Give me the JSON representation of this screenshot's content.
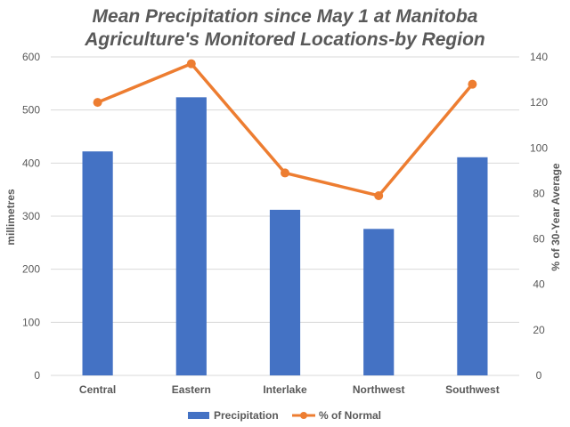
{
  "chart_data": {
    "type": "bar",
    "title_line1": "Mean Precipitation since May 1 at Manitoba",
    "title_line2": "Agriculture's Monitored Locations-by Region",
    "categories": [
      "Central",
      "Eastern",
      "Interlake",
      "Northwest",
      "Southwest"
    ],
    "series": [
      {
        "name": "Precipitation",
        "type": "bar",
        "axis": "left",
        "color": "#4472C4",
        "values": [
          422,
          524,
          312,
          276,
          411
        ]
      },
      {
        "name": "% of Normal",
        "type": "line",
        "axis": "right",
        "color": "#ED7D31",
        "values": [
          120,
          137,
          89,
          79,
          128
        ]
      }
    ],
    "ylabel": "millimetres",
    "ylim": [
      0,
      600
    ],
    "yticks": [
      0,
      100,
      200,
      300,
      400,
      500,
      600
    ],
    "y2label": "% of 30-Year Average",
    "y2lim": [
      0,
      140
    ],
    "y2ticks": [
      0,
      20,
      40,
      60,
      80,
      100,
      120,
      140
    ],
    "grid": true,
    "legend_position": "bottom"
  }
}
